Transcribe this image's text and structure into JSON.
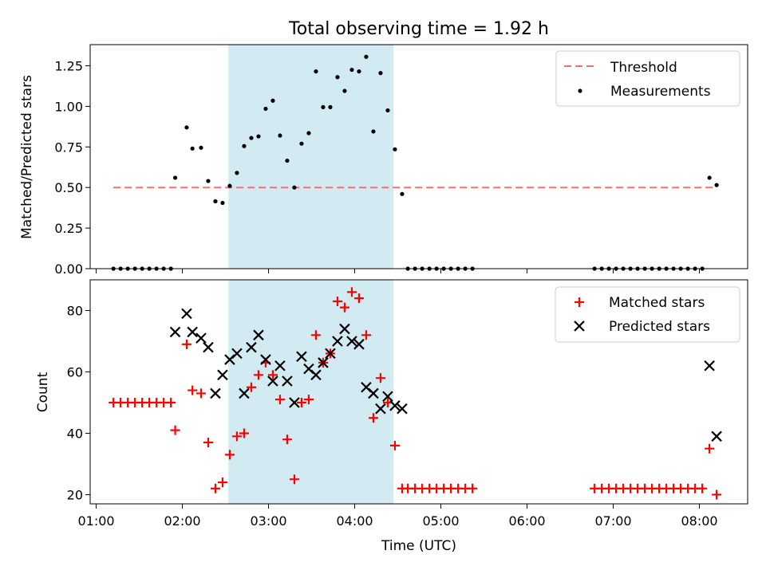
{
  "figure": {
    "title": "Total observing time = 1.92 h",
    "xlabel": "Time (UTC)",
    "xticks": [
      "01:00",
      "02:00",
      "03:00",
      "04:00",
      "05:00",
      "06:00",
      "07:00",
      "08:00"
    ]
  },
  "chart_data": [
    {
      "type": "scatter",
      "ylabel": "Matched/Predicted stars",
      "ylim": [
        0,
        1.38
      ],
      "yticks": [
        "0.00",
        "0.25",
        "0.50",
        "0.75",
        "1.00",
        "1.25"
      ],
      "x_unit": "hours UTC",
      "shaded_interval": [
        "02:32",
        "04:27"
      ],
      "shade_color": "#add8e6",
      "legend": {
        "location": "upper right",
        "entries": [
          "Threshold",
          "Measurements"
        ]
      },
      "threshold": {
        "name": "Threshold",
        "value": 0.5,
        "x_range": [
          "01:12",
          "08:12"
        ],
        "color": "#f07070"
      },
      "series": [
        {
          "name": "Measurements",
          "marker": "dot",
          "color": "#000000",
          "x": [
            "01:12",
            "01:17",
            "01:22",
            "01:27",
            "01:32",
            "01:37",
            "01:42",
            "01:47",
            "01:52",
            "01:55",
            "02:03",
            "02:07",
            "02:13",
            "02:18",
            "02:23",
            "02:28",
            "02:33",
            "02:38",
            "02:43",
            "02:48",
            "02:53",
            "02:58",
            "03:03",
            "03:08",
            "03:13",
            "03:18",
            "03:23",
            "03:28",
            "03:33",
            "03:38",
            "03:43",
            "03:48",
            "03:53",
            "03:58",
            "04:03",
            "04:08",
            "04:13",
            "04:18",
            "04:23",
            "04:28",
            "04:33",
            "04:37",
            "04:42",
            "04:47",
            "04:52",
            "04:57",
            "05:02",
            "05:07",
            "05:12",
            "05:17",
            "05:22",
            "06:47",
            "06:52",
            "06:57",
            "07:02",
            "07:07",
            "07:12",
            "07:17",
            "07:22",
            "07:27",
            "07:32",
            "07:37",
            "07:42",
            "07:47",
            "07:52",
            "07:57",
            "08:02",
            "08:07",
            "08:12"
          ],
          "y": [
            0,
            0,
            0,
            0,
            0,
            0,
            0,
            0,
            0,
            0.56,
            0.87,
            0.74,
            0.745,
            0.54,
            0.415,
            0.405,
            0.51,
            0.59,
            0.755,
            0.805,
            0.815,
            0.985,
            1.035,
            0.82,
            0.665,
            0.5,
            0.77,
            0.835,
            1.215,
            0.995,
            0.995,
            1.18,
            1.095,
            1.225,
            1.215,
            1.305,
            0.845,
            1.205,
            0.975,
            0.735,
            0.46,
            0,
            0,
            0,
            0,
            0,
            0,
            0,
            0,
            0,
            0,
            0,
            0,
            0,
            0,
            0,
            0,
            0,
            0,
            0,
            0,
            0,
            0,
            0,
            0,
            0,
            0,
            0.56,
            0.515
          ]
        }
      ]
    },
    {
      "type": "scatter",
      "ylabel": "Count",
      "ylim": [
        17,
        90
      ],
      "yticks": [
        "20",
        "40",
        "60",
        "80"
      ],
      "x_unit": "hours UTC",
      "shaded_interval": [
        "02:32",
        "04:27"
      ],
      "shade_color": "#add8e6",
      "legend": {
        "location": "upper right",
        "entries": [
          "Matched stars",
          "Predicted stars"
        ]
      },
      "series": [
        {
          "name": "Matched stars",
          "marker": "plus",
          "color": "#ff0000",
          "x": [
            "01:12",
            "01:17",
            "01:22",
            "01:27",
            "01:32",
            "01:37",
            "01:42",
            "01:47",
            "01:52",
            "01:55",
            "02:03",
            "02:07",
            "02:13",
            "02:18",
            "02:23",
            "02:28",
            "02:33",
            "02:38",
            "02:43",
            "02:48",
            "02:53",
            "02:58",
            "03:03",
            "03:08",
            "03:13",
            "03:18",
            "03:23",
            "03:28",
            "03:33",
            "03:38",
            "03:43",
            "03:48",
            "03:53",
            "03:58",
            "04:03",
            "04:08",
            "04:13",
            "04:18",
            "04:23",
            "04:28",
            "04:33",
            "04:37",
            "04:42",
            "04:47",
            "04:52",
            "04:57",
            "05:02",
            "05:07",
            "05:12",
            "05:17",
            "05:22",
            "06:47",
            "06:52",
            "06:57",
            "07:02",
            "07:07",
            "07:12",
            "07:17",
            "07:22",
            "07:27",
            "07:32",
            "07:37",
            "07:42",
            "07:47",
            "07:52",
            "07:57",
            "08:02",
            "08:07",
            "08:12"
          ],
          "y": [
            50,
            50,
            50,
            50,
            50,
            50,
            50,
            50,
            50,
            41,
            69,
            54,
            53,
            37,
            22,
            24,
            33,
            39,
            40,
            55,
            59,
            63,
            59,
            51,
            38,
            25,
            50,
            51,
            72,
            63,
            66,
            83,
            81,
            86,
            84,
            72,
            45,
            58,
            50,
            36,
            22,
            22,
            22,
            22,
            22,
            22,
            22,
            22,
            22,
            22,
            22,
            22,
            22,
            22,
            22,
            22,
            22,
            22,
            22,
            22,
            22,
            22,
            22,
            22,
            22,
            22,
            22,
            35,
            20
          ]
        },
        {
          "name": "Predicted stars",
          "marker": "x",
          "color": "#000000",
          "x": [
            "01:55",
            "02:03",
            "02:07",
            "02:13",
            "02:18",
            "02:23",
            "02:28",
            "02:33",
            "02:38",
            "02:43",
            "02:48",
            "02:53",
            "02:58",
            "03:03",
            "03:08",
            "03:13",
            "03:18",
            "03:23",
            "03:28",
            "03:33",
            "03:38",
            "03:43",
            "03:48",
            "03:53",
            "03:58",
            "04:03",
            "04:08",
            "04:13",
            "04:18",
            "04:23",
            "04:28",
            "04:33",
            "08:07",
            "08:12"
          ],
          "y": [
            73,
            79,
            73,
            71,
            68,
            53,
            59,
            64,
            66,
            53,
            68,
            72,
            64,
            57,
            62,
            57,
            50,
            65,
            61,
            59,
            63,
            66,
            70,
            74,
            70,
            69,
            55,
            53,
            48,
            52,
            49,
            48,
            62,
            39
          ]
        }
      ]
    }
  ]
}
